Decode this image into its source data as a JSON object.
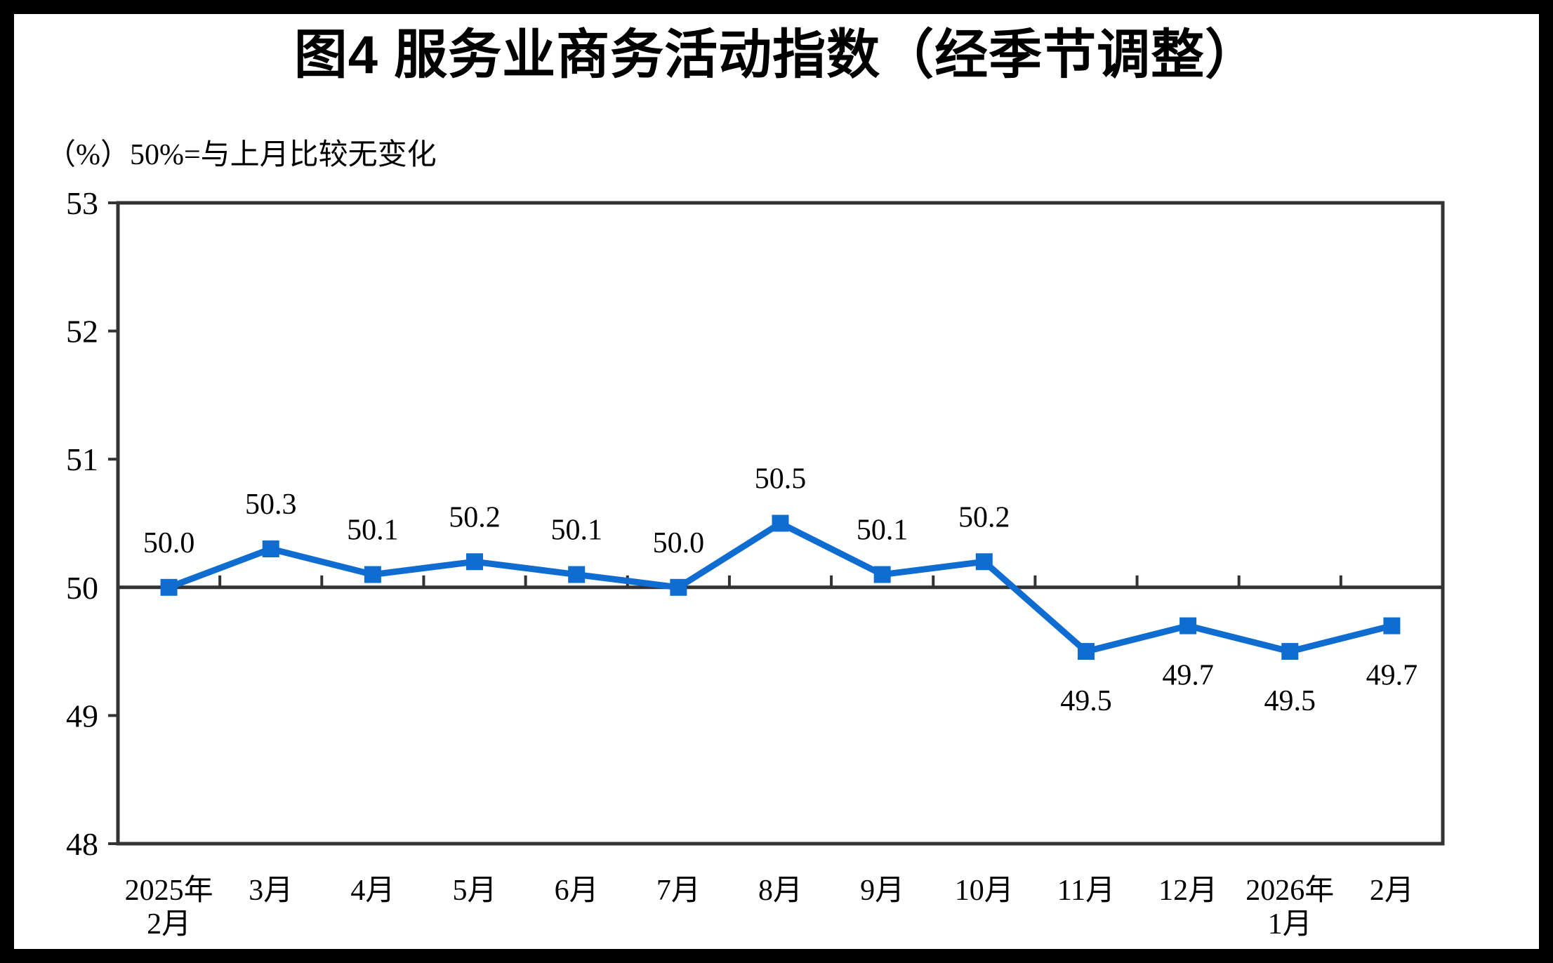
{
  "frame": {
    "background": "#ffffff",
    "border_color": "#000000"
  },
  "chart_data": {
    "type": "line",
    "title": "图4  服务业商务活动指数（经季节调整）",
    "unit_note": "（%）50%=与上月比较无变化",
    "categories": [
      [
        "2025年",
        "2月"
      ],
      [
        "3月"
      ],
      [
        "4月"
      ],
      [
        "5月"
      ],
      [
        "6月"
      ],
      [
        "7月"
      ],
      [
        "8月"
      ],
      [
        "9月"
      ],
      [
        "10月"
      ],
      [
        "11月"
      ],
      [
        "12月"
      ],
      [
        "2026年",
        "1月"
      ],
      [
        "2月"
      ]
    ],
    "values": [
      50.0,
      50.3,
      50.1,
      50.2,
      50.1,
      50.0,
      50.5,
      50.1,
      50.2,
      49.5,
      49.7,
      49.5,
      49.7
    ],
    "data_labels": [
      "50.0",
      "50.3",
      "50.1",
      "50.2",
      "50.1",
      "50.0",
      "50.5",
      "50.1",
      "50.2",
      "49.5",
      "49.7",
      "49.5",
      "49.7"
    ],
    "ylim": [
      48,
      53
    ],
    "yticks": [
      53,
      52,
      51,
      50,
      49,
      48
    ],
    "baseline_value": 50,
    "series_color": "#0f6cd0",
    "axis_color": "#333333",
    "marker": "square",
    "grid": "off",
    "legend": "none"
  }
}
